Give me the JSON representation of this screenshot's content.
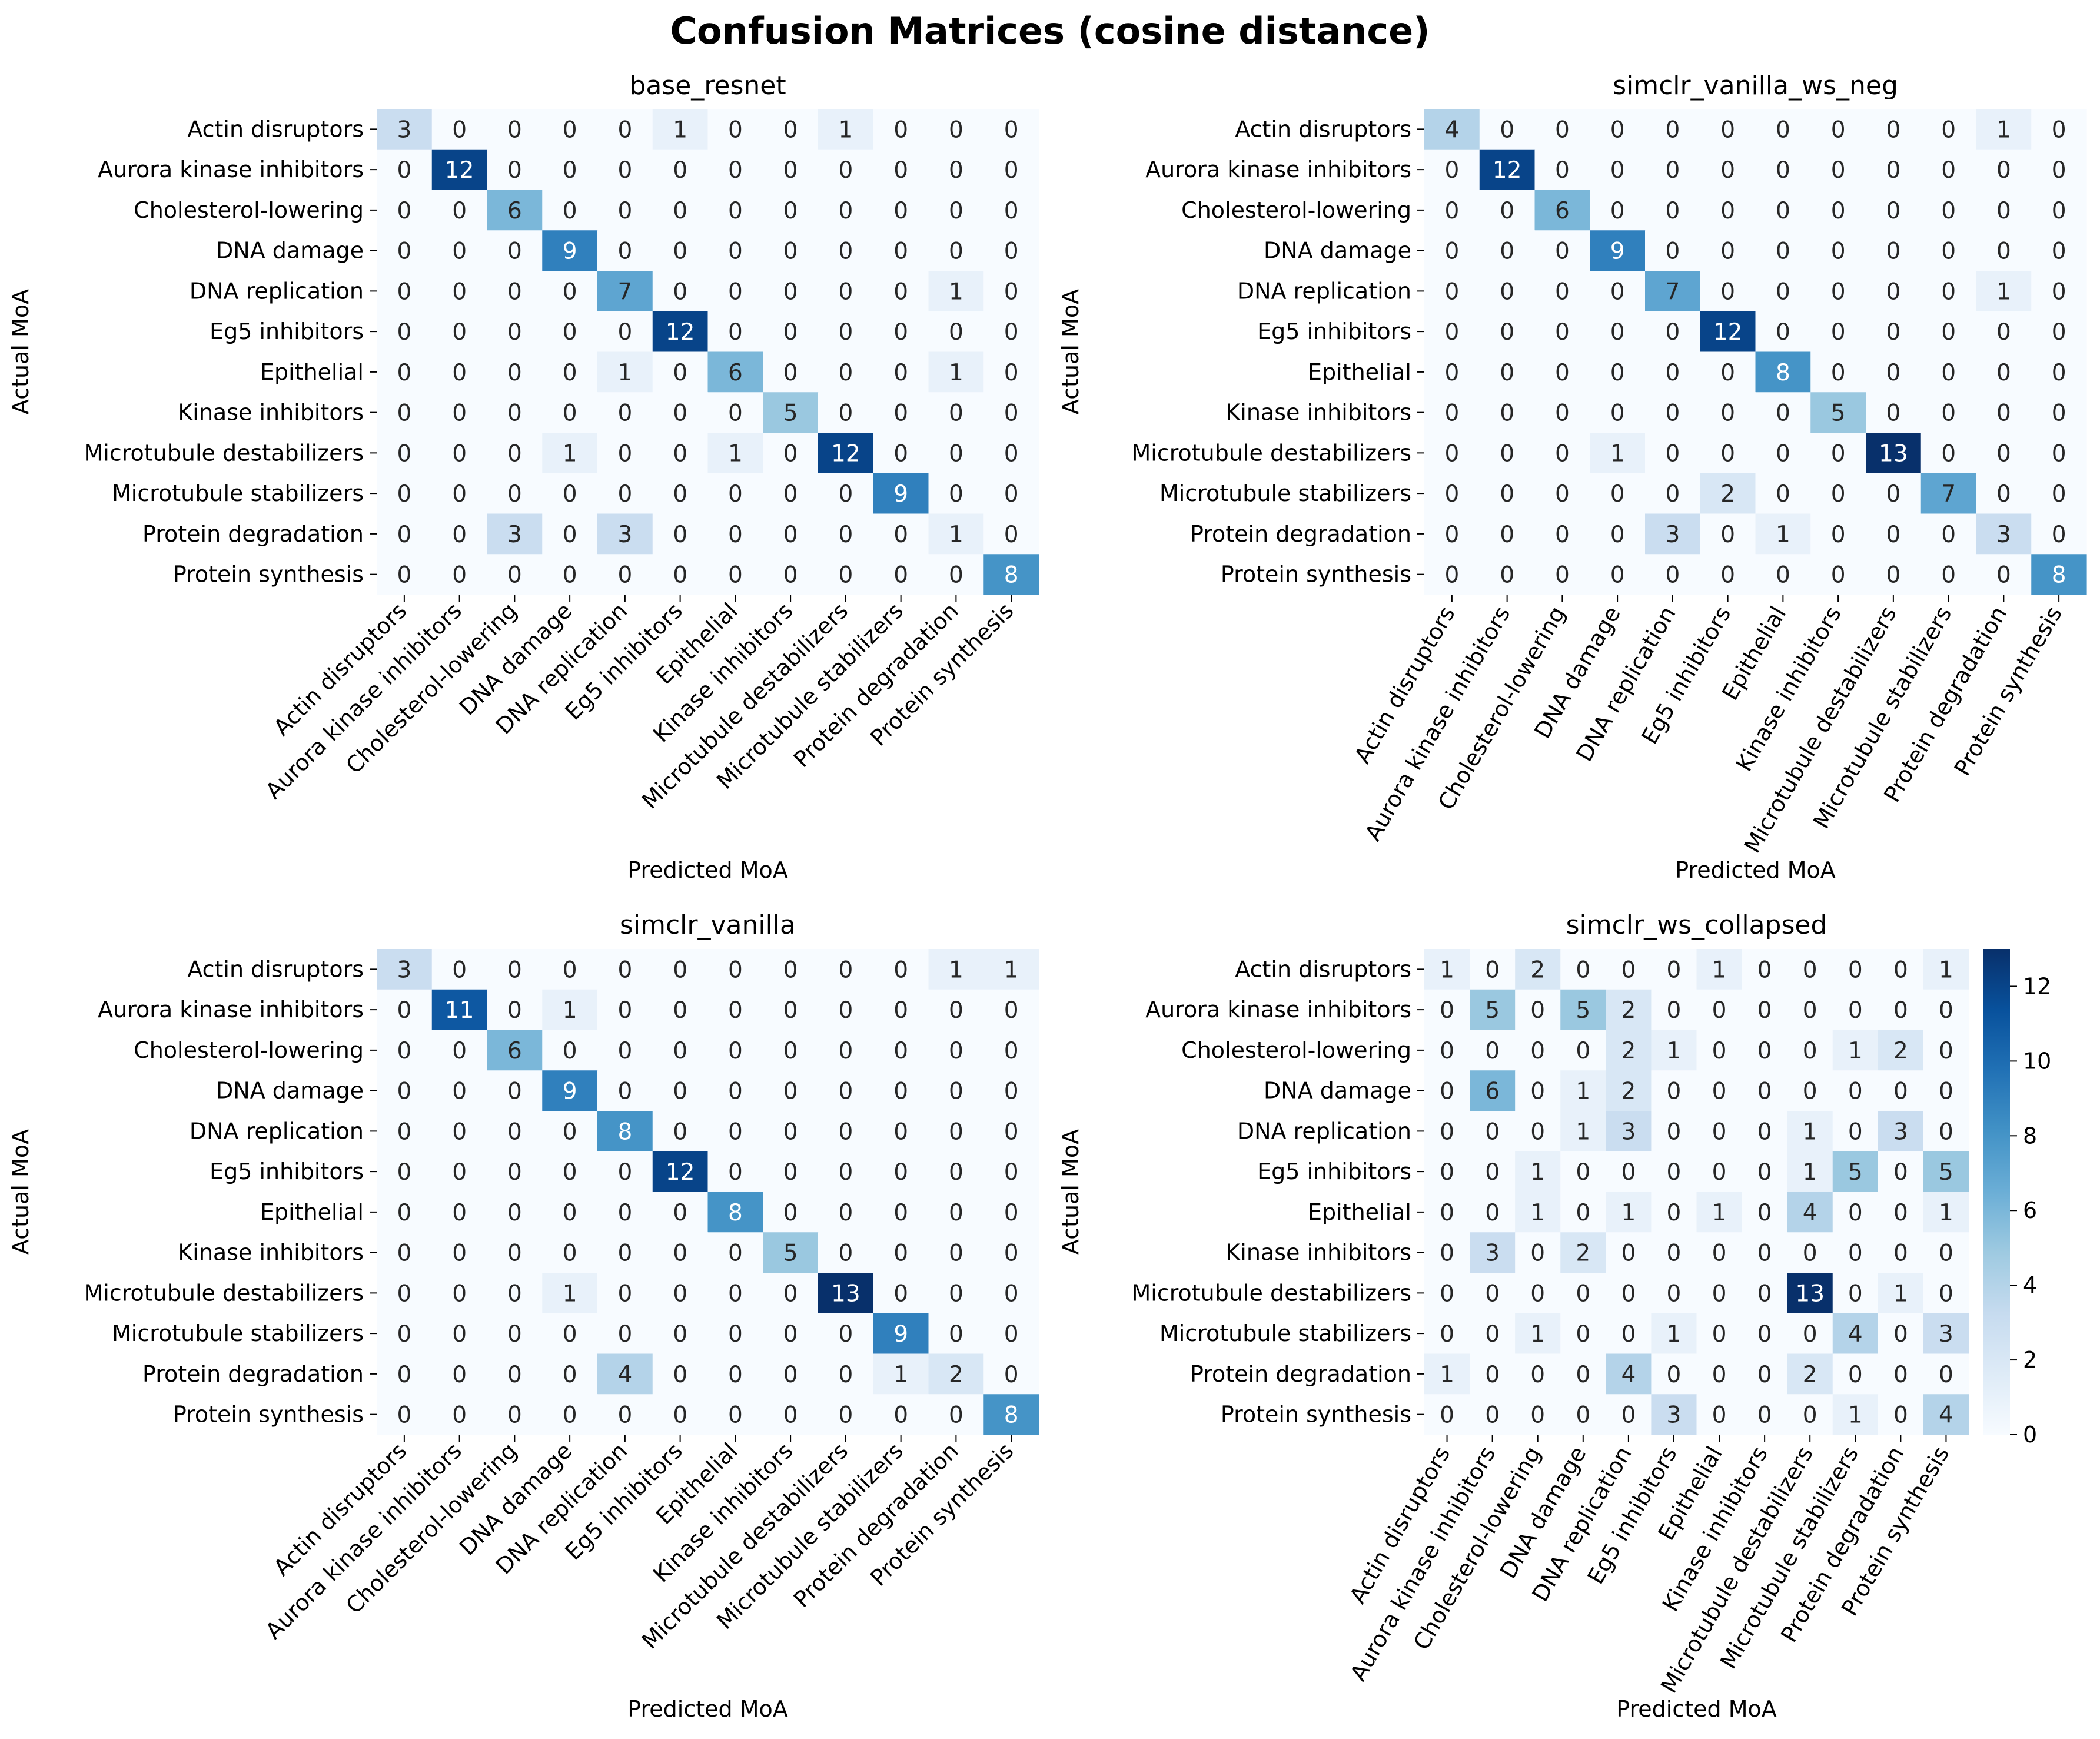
{
  "figure_title": "Confusion Matrices (cosine distance)",
  "colors": {
    "cmap_low": "#f7fbff",
    "cmap_high": "#08306b"
  },
  "chart_data": [
    {
      "type": "heatmap",
      "title": "base_resnet",
      "xlabel": "Predicted MoA",
      "ylabel": "Actual MoA",
      "categories": [
        "Actin disruptors",
        "Aurora kinase inhibitors",
        "Cholesterol-lowering",
        "DNA damage",
        "DNA replication",
        "Eg5 inhibitors",
        "Epithelial",
        "Kinase inhibitors",
        "Microtubule destabilizers",
        "Microtubule stabilizers",
        "Protein degradation",
        "Protein synthesis"
      ],
      "vmin": 0,
      "vmax": 13,
      "colorbar": false,
      "values": [
        [
          3,
          0,
          0,
          0,
          0,
          1,
          0,
          0,
          1,
          0,
          0,
          0
        ],
        [
          0,
          12,
          0,
          0,
          0,
          0,
          0,
          0,
          0,
          0,
          0,
          0
        ],
        [
          0,
          0,
          6,
          0,
          0,
          0,
          0,
          0,
          0,
          0,
          0,
          0
        ],
        [
          0,
          0,
          0,
          9,
          0,
          0,
          0,
          0,
          0,
          0,
          0,
          0
        ],
        [
          0,
          0,
          0,
          0,
          7,
          0,
          0,
          0,
          0,
          0,
          1,
          0
        ],
        [
          0,
          0,
          0,
          0,
          0,
          12,
          0,
          0,
          0,
          0,
          0,
          0
        ],
        [
          0,
          0,
          0,
          0,
          1,
          0,
          6,
          0,
          0,
          0,
          1,
          0
        ],
        [
          0,
          0,
          0,
          0,
          0,
          0,
          0,
          5,
          0,
          0,
          0,
          0
        ],
        [
          0,
          0,
          0,
          1,
          0,
          0,
          1,
          0,
          12,
          0,
          0,
          0
        ],
        [
          0,
          0,
          0,
          0,
          0,
          0,
          0,
          0,
          0,
          9,
          0,
          0
        ],
        [
          0,
          0,
          3,
          0,
          3,
          0,
          0,
          0,
          0,
          0,
          1,
          0
        ],
        [
          0,
          0,
          0,
          0,
          0,
          0,
          0,
          0,
          0,
          0,
          0,
          8
        ]
      ]
    },
    {
      "type": "heatmap",
      "title": "simclr_vanilla_ws_neg",
      "xlabel": "Predicted MoA",
      "ylabel": "Actual MoA",
      "categories": [
        "Actin disruptors",
        "Aurora kinase inhibitors",
        "Cholesterol-lowering",
        "DNA damage",
        "DNA replication",
        "Eg5 inhibitors",
        "Epithelial",
        "Kinase inhibitors",
        "Microtubule destabilizers",
        "Microtubule stabilizers",
        "Protein degradation",
        "Protein synthesis"
      ],
      "vmin": 0,
      "vmax": 13,
      "colorbar": false,
      "values": [
        [
          4,
          0,
          0,
          0,
          0,
          0,
          0,
          0,
          0,
          0,
          1,
          0
        ],
        [
          0,
          12,
          0,
          0,
          0,
          0,
          0,
          0,
          0,
          0,
          0,
          0
        ],
        [
          0,
          0,
          6,
          0,
          0,
          0,
          0,
          0,
          0,
          0,
          0,
          0
        ],
        [
          0,
          0,
          0,
          9,
          0,
          0,
          0,
          0,
          0,
          0,
          0,
          0
        ],
        [
          0,
          0,
          0,
          0,
          7,
          0,
          0,
          0,
          0,
          0,
          1,
          0
        ],
        [
          0,
          0,
          0,
          0,
          0,
          12,
          0,
          0,
          0,
          0,
          0,
          0
        ],
        [
          0,
          0,
          0,
          0,
          0,
          0,
          8,
          0,
          0,
          0,
          0,
          0
        ],
        [
          0,
          0,
          0,
          0,
          0,
          0,
          0,
          5,
          0,
          0,
          0,
          0
        ],
        [
          0,
          0,
          0,
          1,
          0,
          0,
          0,
          0,
          13,
          0,
          0,
          0
        ],
        [
          0,
          0,
          0,
          0,
          0,
          2,
          0,
          0,
          0,
          7,
          0,
          0
        ],
        [
          0,
          0,
          0,
          0,
          3,
          0,
          1,
          0,
          0,
          0,
          3,
          0
        ],
        [
          0,
          0,
          0,
          0,
          0,
          0,
          0,
          0,
          0,
          0,
          0,
          8
        ]
      ]
    },
    {
      "type": "heatmap",
      "title": "simclr_vanilla",
      "xlabel": "Predicted MoA",
      "ylabel": "Actual MoA",
      "categories": [
        "Actin disruptors",
        "Aurora kinase inhibitors",
        "Cholesterol-lowering",
        "DNA damage",
        "DNA replication",
        "Eg5 inhibitors",
        "Epithelial",
        "Kinase inhibitors",
        "Microtubule destabilizers",
        "Microtubule stabilizers",
        "Protein degradation",
        "Protein synthesis"
      ],
      "vmin": 0,
      "vmax": 13,
      "colorbar": false,
      "values": [
        [
          3,
          0,
          0,
          0,
          0,
          0,
          0,
          0,
          0,
          0,
          1,
          1
        ],
        [
          0,
          11,
          0,
          1,
          0,
          0,
          0,
          0,
          0,
          0,
          0,
          0
        ],
        [
          0,
          0,
          6,
          0,
          0,
          0,
          0,
          0,
          0,
          0,
          0,
          0
        ],
        [
          0,
          0,
          0,
          9,
          0,
          0,
          0,
          0,
          0,
          0,
          0,
          0
        ],
        [
          0,
          0,
          0,
          0,
          8,
          0,
          0,
          0,
          0,
          0,
          0,
          0
        ],
        [
          0,
          0,
          0,
          0,
          0,
          12,
          0,
          0,
          0,
          0,
          0,
          0
        ],
        [
          0,
          0,
          0,
          0,
          0,
          0,
          8,
          0,
          0,
          0,
          0,
          0
        ],
        [
          0,
          0,
          0,
          0,
          0,
          0,
          0,
          5,
          0,
          0,
          0,
          0
        ],
        [
          0,
          0,
          0,
          1,
          0,
          0,
          0,
          0,
          13,
          0,
          0,
          0
        ],
        [
          0,
          0,
          0,
          0,
          0,
          0,
          0,
          0,
          0,
          9,
          0,
          0
        ],
        [
          0,
          0,
          0,
          0,
          4,
          0,
          0,
          0,
          0,
          1,
          2,
          0
        ],
        [
          0,
          0,
          0,
          0,
          0,
          0,
          0,
          0,
          0,
          0,
          0,
          8
        ]
      ]
    },
    {
      "type": "heatmap",
      "title": "simclr_ws_collapsed",
      "xlabel": "Predicted MoA",
      "ylabel": "Actual MoA",
      "categories": [
        "Actin disruptors",
        "Aurora kinase inhibitors",
        "Cholesterol-lowering",
        "DNA damage",
        "DNA replication",
        "Eg5 inhibitors",
        "Epithelial",
        "Kinase inhibitors",
        "Microtubule destabilizers",
        "Microtubule stabilizers",
        "Protein degradation",
        "Protein synthesis"
      ],
      "vmin": 0,
      "vmax": 13,
      "colorbar": true,
      "colorbar_ticks": [
        "0",
        "2",
        "4",
        "6",
        "8",
        "10",
        "12"
      ],
      "values": [
        [
          1,
          0,
          2,
          0,
          0,
          0,
          1,
          0,
          0,
          0,
          0,
          1
        ],
        [
          0,
          5,
          0,
          5,
          2,
          0,
          0,
          0,
          0,
          0,
          0,
          0
        ],
        [
          0,
          0,
          0,
          0,
          2,
          1,
          0,
          0,
          0,
          1,
          2,
          0
        ],
        [
          0,
          6,
          0,
          1,
          2,
          0,
          0,
          0,
          0,
          0,
          0,
          0
        ],
        [
          0,
          0,
          0,
          1,
          3,
          0,
          0,
          0,
          1,
          0,
          3,
          0
        ],
        [
          0,
          0,
          1,
          0,
          0,
          0,
          0,
          0,
          1,
          5,
          0,
          5
        ],
        [
          0,
          0,
          1,
          0,
          1,
          0,
          1,
          0,
          4,
          0,
          0,
          1
        ],
        [
          0,
          3,
          0,
          2,
          0,
          0,
          0,
          0,
          0,
          0,
          0,
          0
        ],
        [
          0,
          0,
          0,
          0,
          0,
          0,
          0,
          0,
          13,
          0,
          1,
          0
        ],
        [
          0,
          0,
          1,
          0,
          0,
          1,
          0,
          0,
          0,
          4,
          0,
          3
        ],
        [
          1,
          0,
          0,
          0,
          4,
          0,
          0,
          0,
          2,
          0,
          0,
          0
        ],
        [
          0,
          0,
          0,
          0,
          0,
          3,
          0,
          0,
          0,
          1,
          0,
          4
        ]
      ]
    }
  ]
}
